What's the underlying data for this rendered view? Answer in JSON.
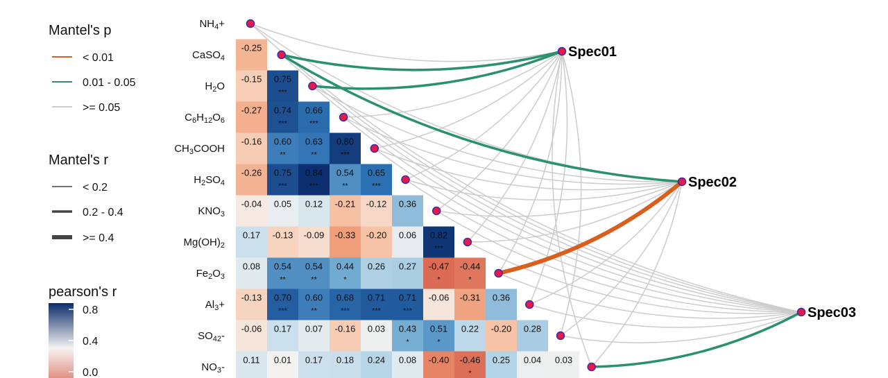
{
  "legend": {
    "mantel_p": {
      "title": "Mantel's p",
      "items": [
        {
          "label": "< 0.01",
          "color": "#D95F1D"
        },
        {
          "label": "0.01 - 0.05",
          "color": "#2A9070"
        },
        {
          "label": ">= 0.05",
          "color": "#CCCCCC"
        }
      ]
    },
    "mantel_r": {
      "title": "Mantel's r",
      "items": [
        {
          "label": "< 0.2"
        },
        {
          "label": "0.2 - 0.4"
        },
        {
          "label": ">= 0.4"
        }
      ]
    },
    "pearson": {
      "title": "pearson's r",
      "ticks": [
        "0.8",
        "0.4",
        "0.0"
      ],
      "colors": {
        "high": "#0C2C6B",
        "mid": "#F5F3F1",
        "low": "#D6604D"
      }
    }
  },
  "chart_data": {
    "type": "heatmap",
    "variables": [
      "NH4+",
      "CaSO4",
      "H2O",
      "C6H12O6",
      "CH3COOH",
      "H2SO4",
      "KNO3",
      "Mg(OH)2",
      "Fe2O3",
      "Al3+",
      "SO42-",
      "NO3-"
    ],
    "matrix_rows": [
      {
        "values": [
          "-0.25"
        ],
        "stars": [
          ""
        ]
      },
      {
        "values": [
          "-0.15",
          "0.75"
        ],
        "stars": [
          "",
          "***"
        ]
      },
      {
        "values": [
          "-0.27",
          "0.74",
          "0.66"
        ],
        "stars": [
          "",
          "***",
          "***"
        ]
      },
      {
        "values": [
          "-0.16",
          "0.60",
          "0.63",
          "0.80"
        ],
        "stars": [
          "",
          "**",
          "**",
          "***"
        ]
      },
      {
        "values": [
          "-0.26",
          "0.75",
          "0.84",
          "0.54",
          "0.65"
        ],
        "stars": [
          "",
          "***",
          "***",
          "**",
          "***"
        ]
      },
      {
        "values": [
          "-0.04",
          "0.05",
          "0.12",
          "-0.21",
          "-0.12",
          "0.36"
        ],
        "stars": [
          "",
          "",
          "",
          "",
          "",
          ""
        ]
      },
      {
        "values": [
          "0.17",
          "-0.13",
          "-0.09",
          "-0.33",
          "-0.20",
          "0.06",
          "0.82"
        ],
        "stars": [
          "",
          "",
          "",
          "",
          "",
          "",
          "***"
        ]
      },
      {
        "values": [
          "0.08",
          "0.54",
          "0.54",
          "0.44",
          "0.26",
          "0.27",
          "-0.47",
          "-0.44"
        ],
        "stars": [
          "",
          "**",
          "**",
          "*",
          "",
          "",
          "*",
          "*"
        ]
      },
      {
        "values": [
          "-0.13",
          "0.70",
          "0.60",
          "0.68",
          "0.71",
          "0.71",
          "-0.06",
          "-0.31",
          "0.36"
        ],
        "stars": [
          "",
          "***",
          "**",
          "***",
          "***",
          "***",
          "",
          "",
          ""
        ]
      },
      {
        "values": [
          "-0.06",
          "0.17",
          "0.07",
          "-0.16",
          "0.03",
          "0.43",
          "0.51",
          "0.22",
          "-0.20",
          "0.28"
        ],
        "stars": [
          "",
          "",
          "",
          "",
          "",
          "*",
          "*",
          "",
          "",
          ""
        ]
      },
      {
        "values": [
          "0.11",
          "0.01",
          "0.17",
          "0.18",
          "0.24",
          "0.08",
          "-0.40",
          "-0.46",
          "0.25",
          "0.04",
          "0.03"
        ],
        "stars": [
          "",
          "",
          "",
          "",
          "",
          "",
          "",
          "*",
          "",
          "",
          ""
        ]
      }
    ],
    "species": [
      "Spec01",
      "Spec02",
      "Spec03"
    ],
    "links": [
      {
        "spec": 0,
        "env": 1,
        "p": "0.01 - 0.05",
        "r": "0.2 - 0.4"
      },
      {
        "spec": 0,
        "env": 2,
        "p": "0.01 - 0.05",
        "r": "0.2 - 0.4"
      },
      {
        "spec": 1,
        "env": 1,
        "p": "0.01 - 0.05",
        "r": "0.2 - 0.4"
      },
      {
        "spec": 1,
        "env": 8,
        "p": "< 0.01",
        "r": ">= 0.4"
      },
      {
        "spec": 2,
        "env": 11,
        "p": "0.01 - 0.05",
        "r": "0.2 - 0.4"
      }
    ]
  }
}
